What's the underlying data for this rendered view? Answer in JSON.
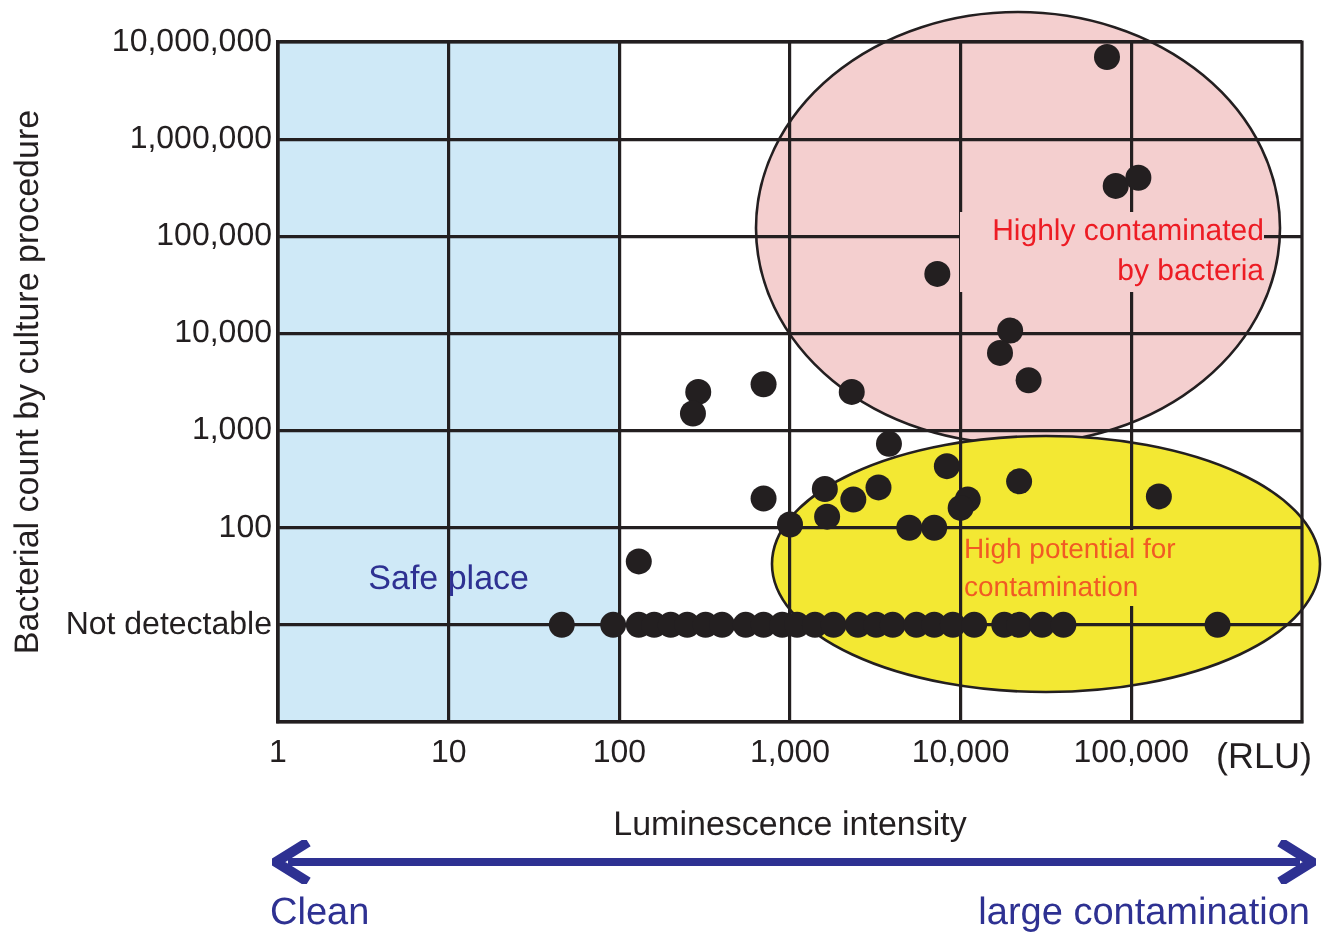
{
  "chart_data": {
    "type": "scatter",
    "xlabel": "Luminescence intensity",
    "ylabel": "Bacterial count by culture procedure",
    "log": "xy",
    "grid": true,
    "legend": false,
    "marker": "circle",
    "xlim": [
      1,
      1000000
    ],
    "ylim": [
      1,
      10000000
    ],
    "xticks": [
      1,
      10,
      {
        "value": 100,
        "label": "100"
      },
      {
        "value": 1000,
        "label": "1,000"
      },
      {
        "value": 10000,
        "label": "10,000"
      },
      {
        "value": 100000,
        "label": "100,000"
      }
    ],
    "yticks": [
      {
        "value": 10,
        "label": "Not detectable"
      },
      100,
      {
        "value": 1000,
        "label": "1,000"
      },
      {
        "value": 10000,
        "label": "10,000"
      },
      {
        "value": 100000,
        "label": "100,000"
      },
      {
        "value": 1000000,
        "label": "1,000,000"
      },
      {
        "value": 10000000,
        "label": "10,000,000"
      }
    ],
    "bands": [
      {
        "axis": "x",
        "from": 1,
        "to": 100,
        "label": "Safe place",
        "color": "#cfe9f7"
      }
    ],
    "annotations": [
      "Highly contaminated by bacteria",
      "High potential for contamination",
      "(RLU)",
      "Clean",
      "large contamination"
    ],
    "series": [
      {
        "color": "#231f20",
        "x": [
          72000,
          81000,
          110000,
          7300,
          19500,
          17000,
          25000,
          290,
          270,
          700,
          2300,
          3800,
          8300,
          22000,
          145000,
          700,
          1600,
          3300,
          2350,
          11000,
          10000,
          1000,
          1650,
          5000,
          7000,
          130,
          46,
          92,
          130,
          160,
          200,
          250,
          320,
          400,
          550,
          700,
          900,
          1100,
          1400,
          1800,
          2500,
          3200,
          4000,
          5500,
          7000,
          9000,
          12000,
          18000,
          22000,
          30000,
          40000,
          320000
        ],
        "values": [
          7000000,
          330000,
          400000,
          41000,
          10700,
          6300,
          3300,
          2500,
          1500,
          3000,
          2500,
          730,
          430,
          300,
          210,
          200,
          250,
          260,
          195,
          195,
          160,
          108,
          130,
          100,
          100,
          45,
          10,
          10,
          10,
          10,
          10,
          10,
          10,
          10,
          10,
          10,
          10,
          10,
          10,
          10,
          10,
          10,
          10,
          10,
          10,
          10,
          10,
          10,
          10,
          10,
          10,
          10
        ]
      }
    ]
  }
}
